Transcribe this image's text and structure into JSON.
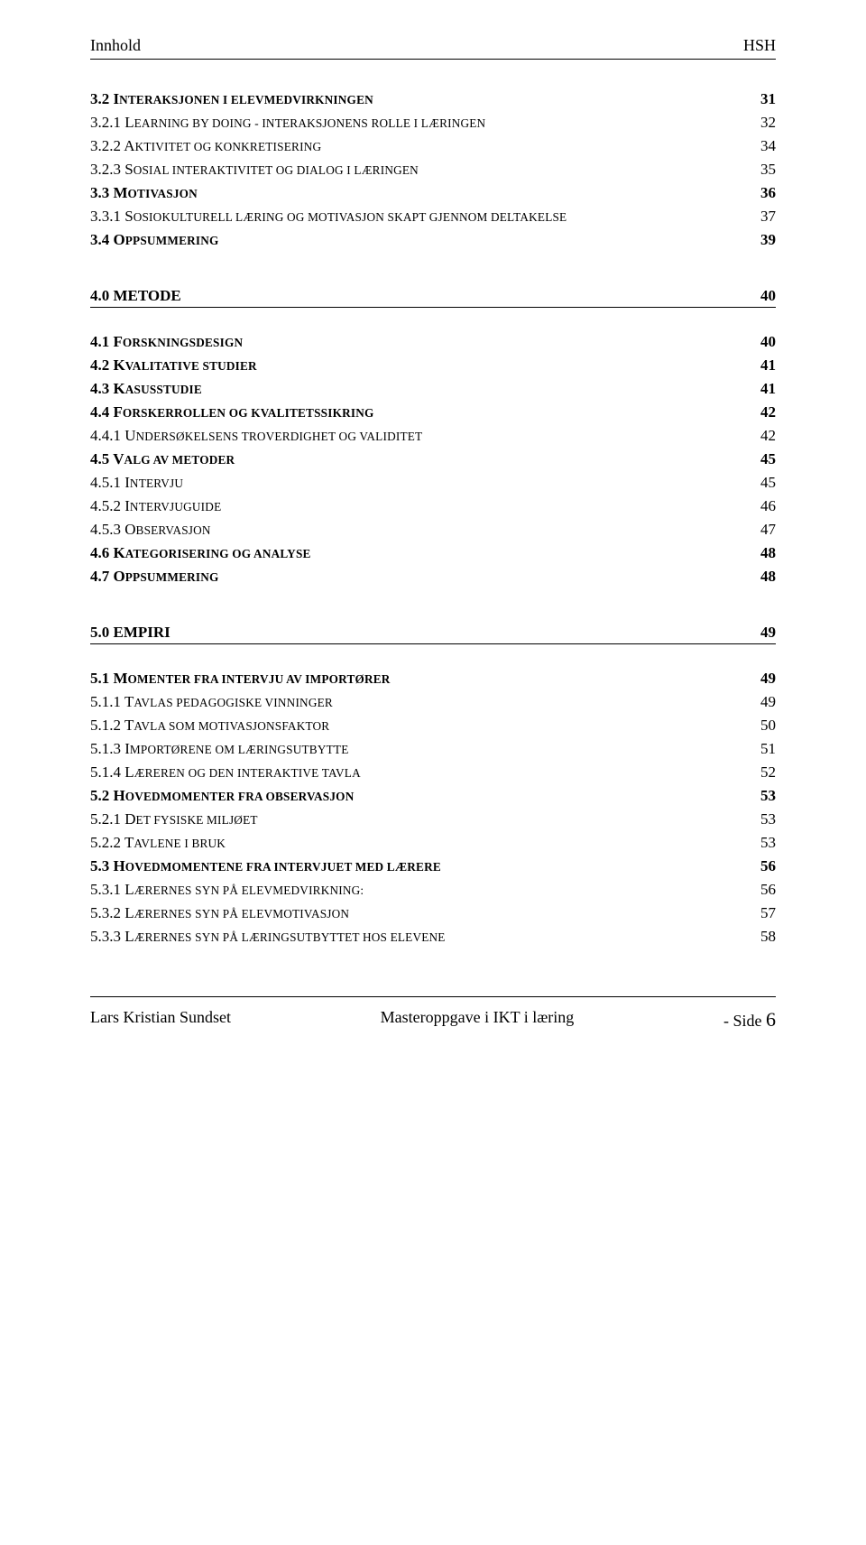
{
  "header": {
    "left": "Innhold",
    "right": "HSH"
  },
  "toc": [
    {
      "label_prefix": "3.2 I",
      "label_sc": "nteraksjonen i elevmedvirkningen",
      "page": "31",
      "bold": true
    },
    {
      "label_prefix": "3.2.1 L",
      "label_sc": "earning by doing - interaksjonens rolle i læringen",
      "page": "32"
    },
    {
      "label_prefix": "3.2.2 A",
      "label_sc": "ktivitet og konkretisering",
      "page": "34"
    },
    {
      "label_prefix": "3.2.3 S",
      "label_sc": "osial interaktivitet og dialog i læringen",
      "page": "35"
    },
    {
      "label_prefix": "3.3 M",
      "label_sc": "otivasjon",
      "page": "36",
      "bold": true
    },
    {
      "label_prefix": "3.3.1 S",
      "label_sc": "osiokulturell læring og motivasjon skapt gjennom deltakelse",
      "page": "37"
    },
    {
      "label_prefix": "3.4 O",
      "label_sc": "ppsummering",
      "page": "39",
      "bold": true
    }
  ],
  "section1": {
    "title": "4.0 METODE",
    "page": "40"
  },
  "toc2": [
    {
      "label_prefix": "4.1 F",
      "label_sc": "orskningsdesign",
      "page": "40",
      "bold": true
    },
    {
      "label_prefix": "4.2 K",
      "label_sc": "valitative studier",
      "page": "41",
      "bold": true
    },
    {
      "label_prefix": "4.3 K",
      "label_sc": "asusstudie",
      "page": "41",
      "bold": true
    },
    {
      "label_prefix": "4.4 F",
      "label_sc": "orskerrollen og kvalitetssikring",
      "page": "42",
      "bold": true
    },
    {
      "label_prefix": "4.4.1 U",
      "label_sc": "ndersøkelsens troverdighet og validitet",
      "page": "42"
    },
    {
      "label_prefix": "4.5 V",
      "label_sc": "alg av metoder",
      "page": "45",
      "bold": true
    },
    {
      "label_prefix": "4.5.1 I",
      "label_sc": "ntervju",
      "page": "45"
    },
    {
      "label_prefix": "4.5.2 I",
      "label_sc": "ntervjuguide",
      "page": "46"
    },
    {
      "label_prefix": "4.5.3 O",
      "label_sc": "bservasjon",
      "page": "47"
    },
    {
      "label_prefix": "4.6 K",
      "label_sc": "ategorisering og analyse",
      "page": "48",
      "bold": true
    },
    {
      "label_prefix": "4.7 O",
      "label_sc": "ppsummering",
      "page": "48",
      "bold": true
    }
  ],
  "section2": {
    "title": "5.0 EMPIRI",
    "page": "49"
  },
  "toc3": [
    {
      "label_prefix": "5.1 M",
      "label_sc": "omenter fra intervju av importører",
      "page": "49",
      "bold": true
    },
    {
      "label_prefix": "5.1.1 T",
      "label_sc": "avlas pedagogiske vinninger",
      "page": "49"
    },
    {
      "label_prefix": "5.1.2 T",
      "label_sc": "avla som motivasjonsfaktor",
      "page": "50"
    },
    {
      "label_prefix": "5.1.3 I",
      "label_sc": "mportørene om læringsutbytte",
      "page": "51"
    },
    {
      "label_prefix": "5.1.4 L",
      "label_sc": "æreren og den interaktive tavla",
      "page": "52"
    },
    {
      "label_prefix": "5.2 H",
      "label_sc": "ovedmomenter fra observasjon",
      "page": "53",
      "bold": true
    },
    {
      "label_prefix": "5.2.1 D",
      "label_sc": "et fysiske miljøet",
      "page": "53"
    },
    {
      "label_prefix": "5.2.2 T",
      "label_sc": "avlene i bruk",
      "page": "53"
    },
    {
      "label_prefix": "5.3 H",
      "label_sc": "ovedmomentene fra intervjuet med lærere",
      "page": "56",
      "bold": true
    },
    {
      "label_prefix": "5.3.1 L",
      "label_sc": "ærernes syn på elevmedvirkning:",
      "page": "56"
    },
    {
      "label_prefix": "5.3.2 L",
      "label_sc": "ærernes syn på elevmotivasjon",
      "page": "57"
    },
    {
      "label_prefix": "5.3.3 L",
      "label_sc": "ærernes syn på læringsutbyttet hos elevene",
      "page": "58"
    }
  ],
  "footer": {
    "author": "Lars Kristian Sundset",
    "center": "Masteroppgave i IKT i læring",
    "right_prefix": "- Side ",
    "right_num": "6"
  }
}
